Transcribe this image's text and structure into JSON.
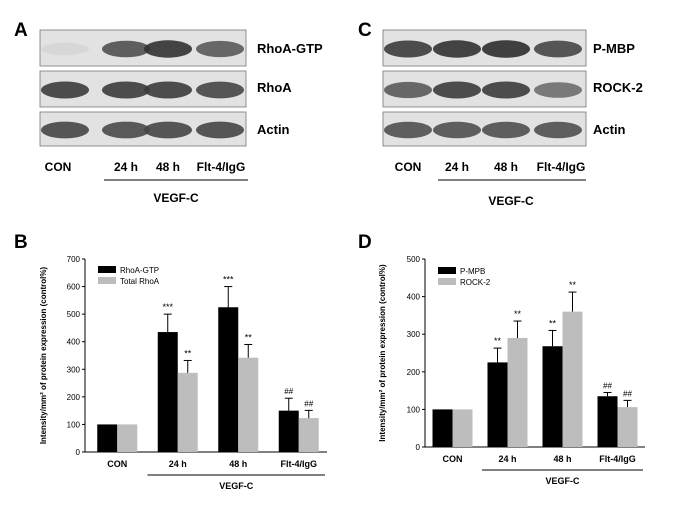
{
  "panels": {
    "A": {
      "letter": "A",
      "bands": [
        "RhoA-GTP",
        "RhoA",
        "Actin"
      ],
      "lanes": [
        "CON",
        "24 h",
        "48 h",
        "Flt-4/IgG"
      ],
      "group_label": "VEGF-C"
    },
    "C": {
      "letter": "C",
      "bands": [
        "P-MBP",
        "ROCK-2",
        "Actin"
      ],
      "lanes": [
        "CON",
        "24 h",
        "48 h",
        "Flt-4/IgG"
      ],
      "group_label": "VEGF-C"
    },
    "B": {
      "letter": "B"
    },
    "D": {
      "letter": "D"
    }
  },
  "blot_intensity": {
    "A": [
      [
        0.08,
        0.75,
        0.9,
        0.7
      ],
      [
        0.85,
        0.85,
        0.85,
        0.8
      ],
      [
        0.8,
        0.78,
        0.8,
        0.8
      ]
    ],
    "C": [
      [
        0.85,
        0.9,
        0.92,
        0.8
      ],
      [
        0.7,
        0.85,
        0.85,
        0.6
      ],
      [
        0.75,
        0.75,
        0.75,
        0.75
      ]
    ]
  },
  "chart_data": [
    {
      "panel": "B",
      "type": "bar",
      "categories": [
        "CON",
        "24 h",
        "48 h",
        "Flt-4/IgG"
      ],
      "group_label": "VEGF-C",
      "ylabel": "Intensity/mm² of protein expression (control%)",
      "ylim": [
        0,
        700
      ],
      "yticks": [
        0,
        100,
        200,
        300,
        400,
        500,
        600,
        700
      ],
      "legend_position": "top-left",
      "series": [
        {
          "name": "RhoA-GTP",
          "color": "#000000",
          "values": [
            100,
            435,
            525,
            150
          ],
          "errors": [
            0,
            65,
            75,
            45
          ],
          "annotations": [
            "",
            "***",
            "***",
            "##"
          ]
        },
        {
          "name": "Total RhoA",
          "color": "#bdbdbd",
          "values": [
            100,
            287,
            342,
            123
          ],
          "errors": [
            0,
            45,
            48,
            28
          ],
          "annotations": [
            "",
            "**",
            "**",
            "##"
          ]
        }
      ]
    },
    {
      "panel": "D",
      "type": "bar",
      "categories": [
        "CON",
        "24 h",
        "48 h",
        "Flt-4/IgG"
      ],
      "group_label": "VEGF-C",
      "ylabel": "Intensity/mm² of protein expression (control%)",
      "ylim": [
        0,
        500
      ],
      "yticks": [
        0,
        100,
        200,
        300,
        400,
        500
      ],
      "legend_position": "top-left",
      "series": [
        {
          "name": "P-MPB",
          "color": "#000000",
          "values": [
            100,
            225,
            268,
            135
          ],
          "errors": [
            0,
            38,
            42,
            10
          ],
          "annotations": [
            "",
            "**",
            "**",
            "##"
          ]
        },
        {
          "name": "ROCK-2",
          "color": "#bdbdbd",
          "values": [
            100,
            290,
            360,
            106
          ],
          "errors": [
            0,
            45,
            52,
            18
          ],
          "annotations": [
            "",
            "**",
            "**",
            "##"
          ]
        }
      ]
    }
  ]
}
